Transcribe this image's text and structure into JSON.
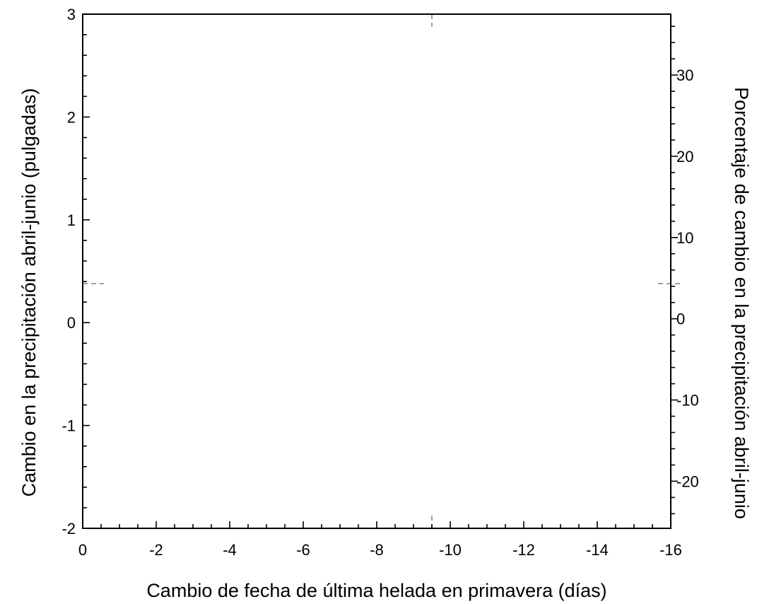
{
  "chart_data": {
    "type": "line",
    "title": "",
    "xlabel": "Cambio de fecha de última helada en primavera (días)",
    "ylabel": "Cambio en la precipitación abril-junio (pulgadas)",
    "y2label": "Porcentaje de cambio en la precipitación abril-junio",
    "xlim": [
      0,
      -16
    ],
    "ylim": [
      -2,
      3
    ],
    "y2lim": [
      -25.8,
      37.5
    ],
    "x_ticks": [
      "0",
      "-2",
      "-4",
      "-6",
      "-8",
      "-10",
      "-12",
      "-14",
      "-16"
    ],
    "x_tick_values": [
      0,
      -2,
      -4,
      -6,
      -8,
      -10,
      -12,
      -14,
      -16
    ],
    "y_ticks": [
      "-2",
      "-1",
      "0",
      "1",
      "2",
      "3"
    ],
    "y_tick_values": [
      -2,
      -1,
      0,
      1,
      2,
      3
    ],
    "y2_ticks": [
      "-20",
      "-10",
      "0",
      "10",
      "20",
      "30"
    ],
    "y2_tick_values": [
      -20,
      -10,
      0,
      10,
      20,
      30
    ],
    "reference_lines": [
      {
        "orientation": "vertical",
        "x": -9.5,
        "style": "dashed",
        "color": "#a0a0a0"
      },
      {
        "orientation": "horizontal",
        "y": 0.38,
        "style": "dashed",
        "color": "#a0a0a0"
      }
    ],
    "series": [],
    "grid": false,
    "legend": "none"
  }
}
